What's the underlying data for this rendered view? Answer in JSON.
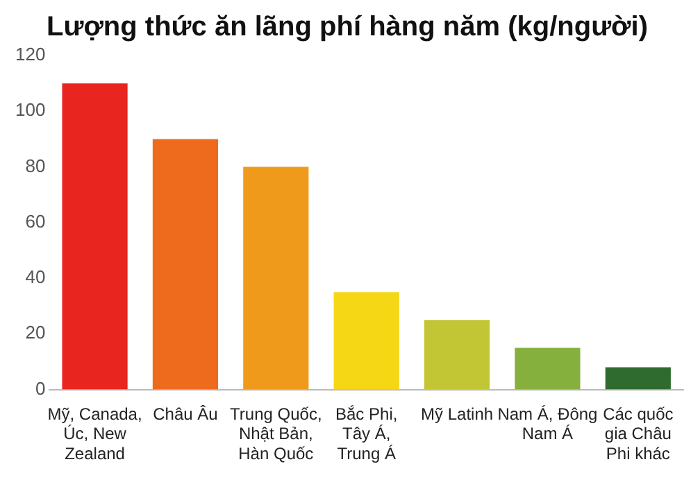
{
  "chart_data": {
    "type": "bar",
    "title": "Lượng thức ăn lãng phí hàng năm (kg/người)",
    "categories": [
      "Mỹ, Canada, Úc, New Zealand",
      "Châu Âu",
      "Trung Quốc, Nhật Bản, Hàn Quốc",
      "Bắc Phi, Tây Á, Trung Á",
      "Mỹ Latinh",
      "Nam Á, Đông Nam Á",
      "Các quốc gia Châu Phi khác"
    ],
    "values": [
      110,
      90,
      80,
      35,
      25,
      15,
      8
    ],
    "colors": [
      "#e8251f",
      "#ee6a1c",
      "#f09a1c",
      "#f5d716",
      "#c3c634",
      "#86b03e",
      "#2f6b2f"
    ],
    "ylim": [
      0,
      120
    ],
    "yticks": [
      0,
      20,
      40,
      60,
      80,
      100,
      120
    ],
    "grid": false,
    "legend": false
  }
}
